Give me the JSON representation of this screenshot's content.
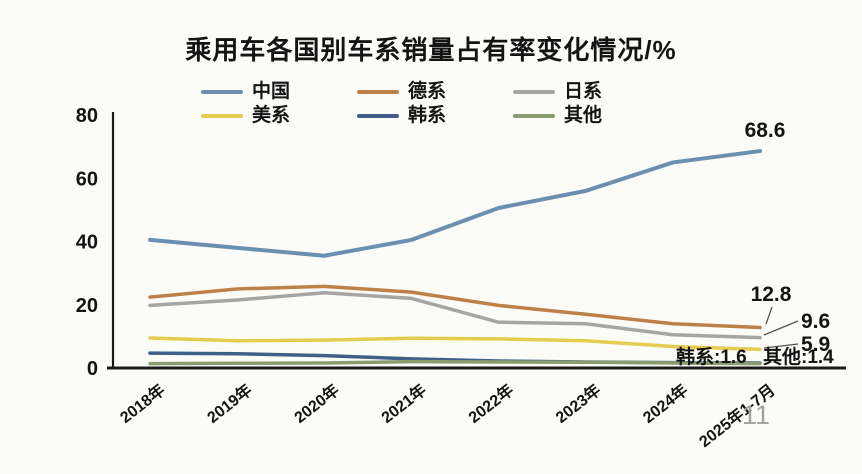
{
  "title": "乘用车各国别车系销量占有率变化情况/%",
  "page_number": "11",
  "chart_data": {
    "type": "line",
    "title": "乘用车各国别车系销量占有率变化情况/%",
    "unit": "%",
    "categories": [
      "2018年",
      "2019年",
      "2020年",
      "2021年",
      "2022年",
      "2023年",
      "2024年",
      "2025年1-7月"
    ],
    "ylim": [
      0,
      80
    ],
    "yticks": [
      0,
      20,
      40,
      60,
      80
    ],
    "grid": false,
    "legend_position": "top",
    "series": [
      {
        "name": "中国",
        "color": "#6b8fb0",
        "values": [
          40.5,
          38.0,
          35.5,
          40.5,
          50.6,
          56.0,
          65.0,
          68.6
        ]
      },
      {
        "name": "德系",
        "color": "#be8049",
        "values": [
          22.4,
          25.0,
          25.8,
          24.0,
          19.8,
          17.0,
          14.0,
          12.8
        ]
      },
      {
        "name": "日系",
        "color": "#a7a5a3",
        "values": [
          19.8,
          21.5,
          23.8,
          22.0,
          14.5,
          14.0,
          10.5,
          9.6
        ]
      },
      {
        "name": "美系",
        "color": "#e5cd50",
        "values": [
          9.5,
          8.6,
          8.8,
          9.4,
          9.2,
          8.6,
          6.8,
          5.9
        ]
      },
      {
        "name": "韩系",
        "color": "#40608a",
        "values": [
          4.7,
          4.5,
          3.9,
          2.9,
          2.2,
          1.9,
          1.7,
          1.6
        ]
      },
      {
        "name": "其他",
        "color": "#8b9c6e",
        "values": [
          1.4,
          1.5,
          1.6,
          2.0,
          1.9,
          1.8,
          1.6,
          1.4
        ]
      }
    ],
    "annotations": [
      {
        "text": "68.6",
        "series": "中国"
      },
      {
        "text": "12.8",
        "series": "德系"
      },
      {
        "text": "9.6",
        "series": "日系"
      },
      {
        "text": "5.9",
        "series": "美系"
      },
      {
        "text": "韩系:1.6",
        "series": "韩系"
      },
      {
        "text": "其他:1.4",
        "series": "其他"
      }
    ]
  }
}
